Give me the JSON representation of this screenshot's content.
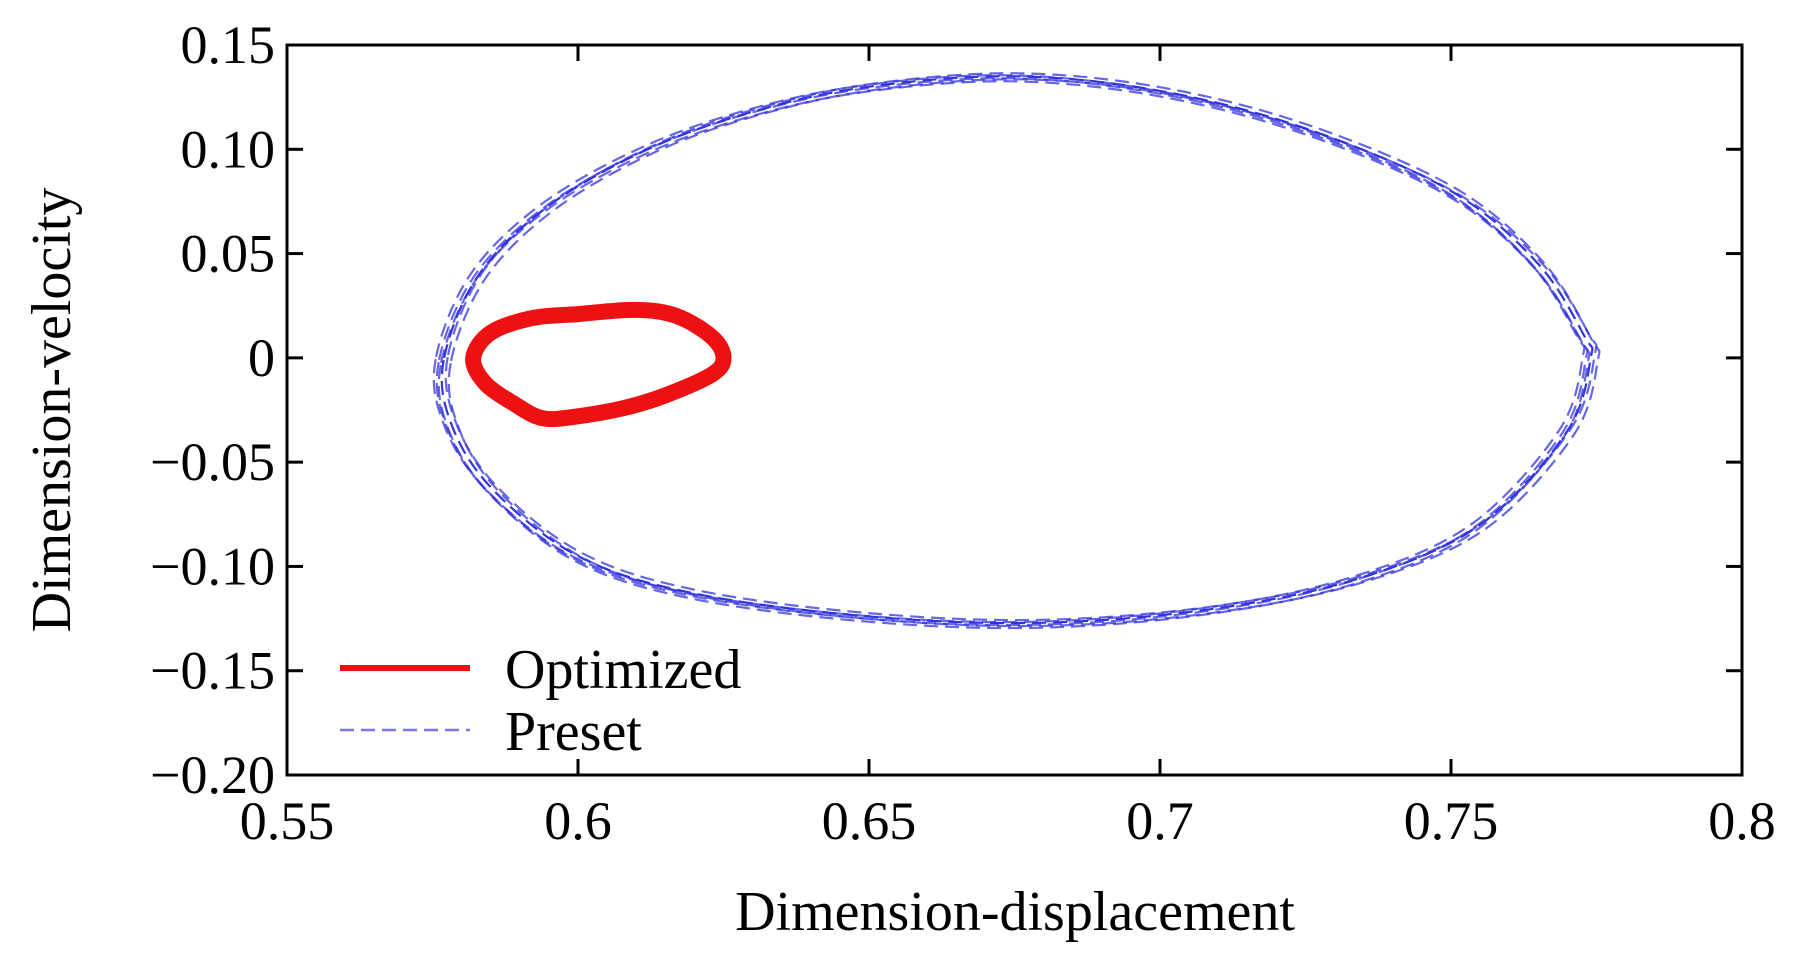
{
  "chart_data": {
    "type": "line",
    "xlabel": "Dimension-displacement",
    "ylabel": "Dimension-velocity",
    "xlim": [
      0.55,
      0.8
    ],
    "ylim": [
      -0.2,
      0.15
    ],
    "x_ticks": [
      "0.55",
      "0.6",
      "0.65",
      "0.7",
      "0.75",
      "0.8"
    ],
    "y_ticks": [
      "−0.20",
      "−0.15",
      "−0.10",
      "−0.05",
      "0",
      "0.05",
      "0.10",
      "0.15"
    ],
    "grid": false,
    "legend_position": "bottom-left",
    "series": [
      {
        "name": "Optimized",
        "color": "#ee1111",
        "style": "solid",
        "points": [
          [
            0.582,
            0.0
          ],
          [
            0.585,
            0.012
          ],
          [
            0.592,
            0.019
          ],
          [
            0.6,
            0.021
          ],
          [
            0.61,
            0.023
          ],
          [
            0.617,
            0.02
          ],
          [
            0.623,
            0.01
          ],
          [
            0.625,
            0.0
          ],
          [
            0.623,
            -0.008
          ],
          [
            0.615,
            -0.018
          ],
          [
            0.608,
            -0.024
          ],
          [
            0.6,
            -0.028
          ],
          [
            0.594,
            -0.029
          ],
          [
            0.589,
            -0.022
          ],
          [
            0.584,
            -0.012
          ],
          [
            0.582,
            0.0
          ]
        ]
      },
      {
        "name": "Preset",
        "color": "#3333dd",
        "style": "dashed",
        "points": [
          [
            0.577,
            0.0
          ],
          [
            0.583,
            0.04
          ],
          [
            0.595,
            0.073
          ],
          [
            0.612,
            0.1
          ],
          [
            0.63,
            0.118
          ],
          [
            0.65,
            0.13
          ],
          [
            0.675,
            0.135
          ],
          [
            0.7,
            0.128
          ],
          [
            0.725,
            0.11
          ],
          [
            0.75,
            0.08
          ],
          [
            0.765,
            0.045
          ],
          [
            0.773,
            0.01
          ],
          [
            0.774,
            0.0
          ],
          [
            0.77,
            -0.035
          ],
          [
            0.755,
            -0.08
          ],
          [
            0.735,
            -0.105
          ],
          [
            0.71,
            -0.12
          ],
          [
            0.68,
            -0.127
          ],
          [
            0.65,
            -0.124
          ],
          [
            0.62,
            -0.113
          ],
          [
            0.6,
            -0.095
          ],
          [
            0.585,
            -0.062
          ],
          [
            0.578,
            -0.03
          ],
          [
            0.577,
            0.0
          ]
        ]
      }
    ]
  }
}
